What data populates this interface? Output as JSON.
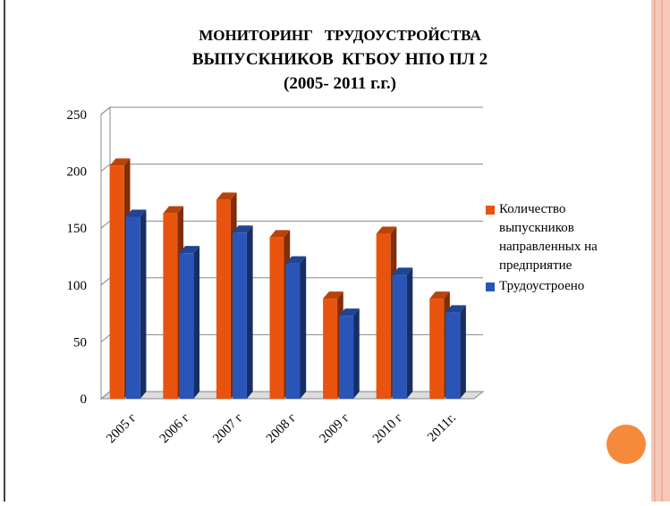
{
  "chart_data": {
    "type": "bar3d",
    "title": [
      "МОНИТОРИНГ   ТРУДОУСТРОЙСТВА",
      "ВЫПУСКНИКОВ  КГБОУ НПО ПЛ 2",
      "(2005- 2011 г.г.)"
    ],
    "categories": [
      "2005 г",
      "2006 г",
      "2007 г",
      "2008 г",
      "2009 г",
      "2010 г",
      "2011г."
    ],
    "series": [
      {
        "name": "Количество выпускников направленных на предприятие",
        "color": "#e8540e",
        "values": [
          205,
          163,
          175,
          142,
          88,
          145,
          88
        ]
      },
      {
        "name": "Трудоустроено",
        "color": "#2a55b8",
        "values": [
          160,
          128,
          146,
          119,
          73,
          109,
          76
        ]
      }
    ],
    "ylim": [
      0,
      250
    ],
    "yticks": [
      0,
      50,
      100,
      150,
      200,
      250
    ],
    "grid": true,
    "legend": "right"
  }
}
